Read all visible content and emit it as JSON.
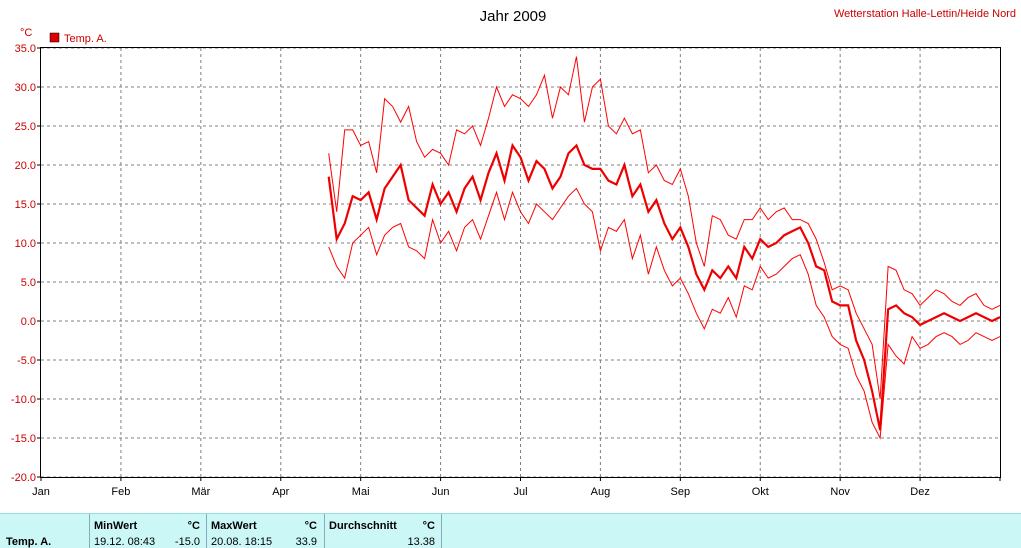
{
  "chart_data": {
    "type": "line",
    "title": "Jahr 2009",
    "source_label": "Wetterstation Halle-Lettin/Heide Nord",
    "ylabel": "°C",
    "ylim": [
      -20,
      35
    ],
    "yticks": [
      "-20.0",
      "-15.0",
      "-10.0",
      "-5.0",
      "0.0",
      "5.0",
      "10.0",
      "15.0",
      "20.0",
      "25.0",
      "30.0",
      "35.0"
    ],
    "xlim_months": [
      0,
      12
    ],
    "month_labels": [
      "Jan",
      "Feb",
      "Mär",
      "Apr",
      "Mai",
      "Jun",
      "Jul",
      "Aug",
      "Sep",
      "Okt",
      "Nov",
      "Dez"
    ],
    "grid": true,
    "legend": {
      "position": "top-left",
      "entries": [
        "Temp. A."
      ]
    },
    "colors": {
      "series": "#ff0000",
      "mean": "#ee0000",
      "text": "#cc0000",
      "axis": "#000000",
      "grid": "#808080"
    },
    "series": [
      {
        "name": "Temp. A.",
        "x_months": [
          3.6,
          3.7,
          3.8,
          3.9,
          4.0,
          4.1,
          4.2,
          4.3,
          4.4,
          4.5,
          4.6,
          4.7,
          4.8,
          4.9,
          5.0,
          5.1,
          5.2,
          5.3,
          5.4,
          5.5,
          5.6,
          5.7,
          5.8,
          5.9,
          6.0,
          6.1,
          6.2,
          6.3,
          6.4,
          6.5,
          6.6,
          6.7,
          6.8,
          6.9,
          7.0,
          7.1,
          7.2,
          7.3,
          7.4,
          7.5,
          7.6,
          7.7,
          7.8,
          7.9,
          8.0,
          8.1,
          8.2,
          8.3,
          8.4,
          8.5,
          8.6,
          8.7,
          8.8,
          8.9,
          9.0,
          9.1,
          9.2,
          9.3,
          9.4,
          9.5,
          9.6,
          9.7,
          9.8,
          9.9,
          10.0,
          10.1,
          10.2,
          10.3,
          10.4,
          10.5,
          10.6,
          10.7,
          10.8,
          10.9,
          11.0,
          11.1,
          11.2,
          11.3,
          11.4,
          11.5,
          11.6,
          11.7,
          11.8,
          11.9,
          12.0
        ],
        "mean": [
          18.5,
          10.5,
          12.5,
          16.0,
          15.5,
          16.5,
          13.0,
          17.0,
          18.5,
          20.0,
          15.5,
          14.5,
          13.5,
          17.5,
          15.0,
          16.5,
          14.0,
          17.0,
          18.5,
          15.5,
          19.0,
          21.5,
          18.0,
          22.5,
          21.0,
          18.0,
          20.5,
          19.5,
          17.0,
          18.5,
          21.5,
          22.5,
          20.0,
          19.5,
          19.5,
          18.0,
          17.5,
          20.0,
          16.0,
          17.5,
          14.0,
          15.5,
          12.5,
          10.5,
          12.0,
          9.5,
          6.0,
          4.0,
          6.5,
          5.5,
          7.0,
          5.5,
          9.5,
          8.0,
          10.5,
          9.5,
          10.0,
          11.0,
          11.5,
          12.0,
          10.0,
          7.0,
          6.5,
          2.5,
          2.0,
          2.0,
          -2.5,
          -5.0,
          -9.0,
          -14.0,
          1.5,
          2.0,
          1.0,
          0.5,
          -0.5,
          0.0,
          0.5,
          1.0,
          0.5,
          0.0,
          0.5,
          1.0,
          0.5,
          0.0,
          0.5
        ],
        "max": [
          21.5,
          14.0,
          24.5,
          24.5,
          22.5,
          23.0,
          19.0,
          28.5,
          27.5,
          25.5,
          27.5,
          23.0,
          21.0,
          22.0,
          21.5,
          20.0,
          24.5,
          24.0,
          25.0,
          22.5,
          26.0,
          30.0,
          27.5,
          29.0,
          28.5,
          27.5,
          29.0,
          31.5,
          26.0,
          30.0,
          29.0,
          33.9,
          25.5,
          30.0,
          31.0,
          25.0,
          24.0,
          26.0,
          24.0,
          24.5,
          19.0,
          20.0,
          18.0,
          17.5,
          19.5,
          16.0,
          10.0,
          7.0,
          13.5,
          13.0,
          11.0,
          10.5,
          13.0,
          13.0,
          14.5,
          13.0,
          14.0,
          14.5,
          13.0,
          13.0,
          12.5,
          10.5,
          7.5,
          4.0,
          4.5,
          4.0,
          1.0,
          -1.0,
          -3.0,
          -10.0,
          7.0,
          6.5,
          4.0,
          3.5,
          2.0,
          3.0,
          4.0,
          3.5,
          2.5,
          2.0,
          3.0,
          3.5,
          2.0,
          1.5,
          2.0
        ],
        "min": [
          9.5,
          7.0,
          5.5,
          10.0,
          11.0,
          12.0,
          8.5,
          11.0,
          12.0,
          12.5,
          9.5,
          9.0,
          8.0,
          13.0,
          10.0,
          11.5,
          9.0,
          12.0,
          13.0,
          10.5,
          13.5,
          16.5,
          13.0,
          16.5,
          14.0,
          12.5,
          15.0,
          14.0,
          13.0,
          14.5,
          16.0,
          17.0,
          15.0,
          14.0,
          9.0,
          12.0,
          11.5,
          13.0,
          8.0,
          11.0,
          6.0,
          9.5,
          6.5,
          4.5,
          5.5,
          3.5,
          1.0,
          -1.0,
          1.5,
          1.0,
          3.0,
          0.5,
          4.5,
          4.0,
          7.0,
          5.5,
          6.0,
          7.0,
          8.0,
          8.5,
          6.0,
          2.0,
          0.5,
          -2.0,
          -3.0,
          -3.5,
          -7.0,
          -9.0,
          -13.0,
          -15.0,
          -3.0,
          -4.5,
          -5.5,
          -2.0,
          -3.5,
          -3.0,
          -2.0,
          -1.5,
          -2.0,
          -3.0,
          -2.5,
          -1.5,
          -2.0,
          -2.5,
          -2.0
        ]
      }
    ]
  },
  "stats": {
    "row_label": "Temp. A.",
    "min": {
      "header": "MinWert",
      "unit": "°C",
      "when": "19.12. 08:43",
      "value": "-15.0"
    },
    "max": {
      "header": "MaxWert",
      "unit": "°C",
      "when": "20.08. 18:15",
      "value": "33.9"
    },
    "avg": {
      "header": "Durchschnitt",
      "unit": "°C",
      "value": "13.38"
    }
  }
}
